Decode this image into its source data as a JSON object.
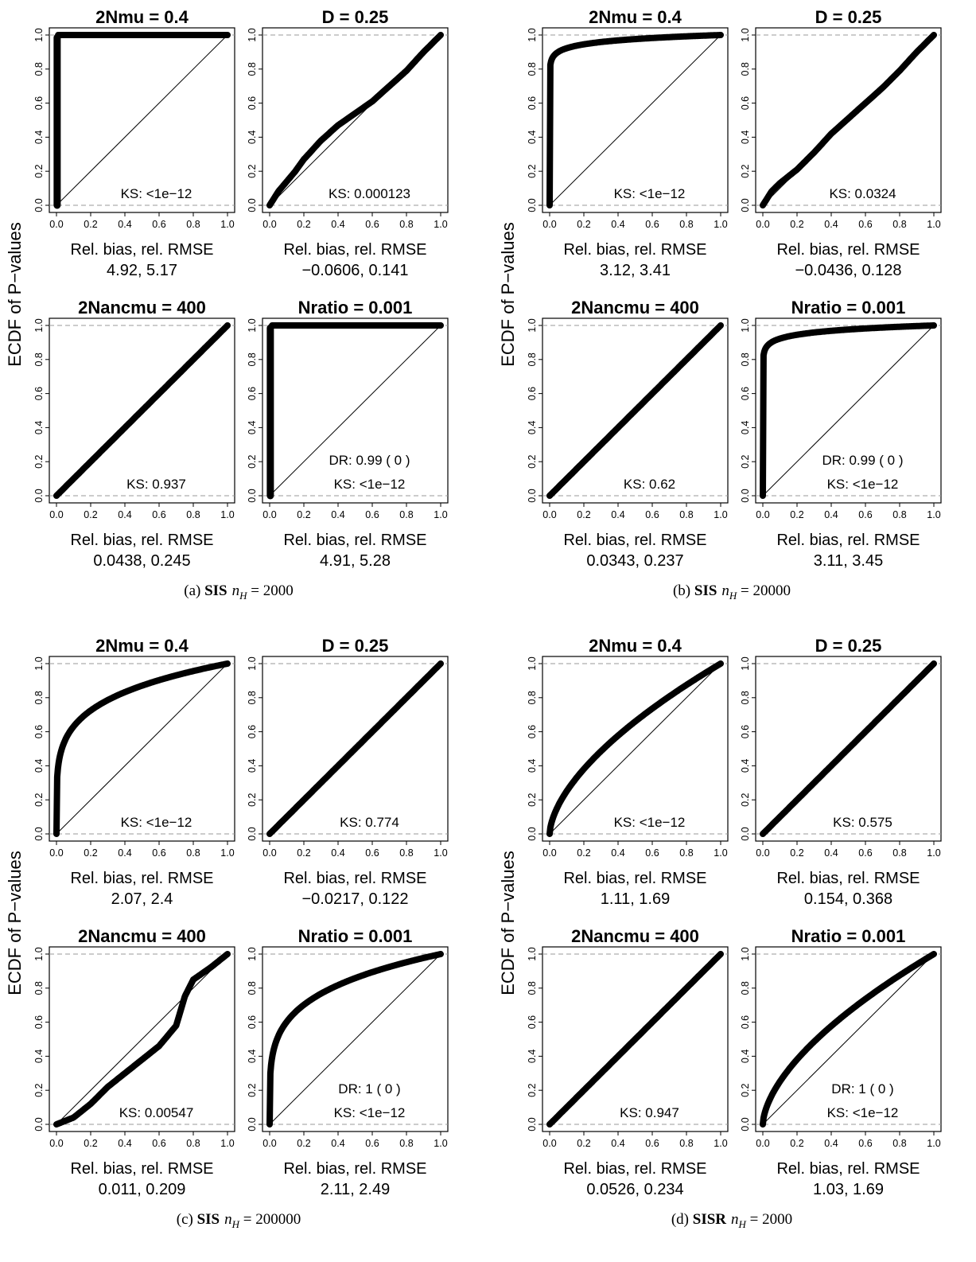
{
  "ylabel": "ECDF of P−values",
  "stat_label": "Rel. bias, rel. RMSE",
  "chart_data": [
    {
      "caption": {
        "prefix": "(a) ",
        "method": "SIS",
        "var": "n",
        "sub": "H",
        "eq": " = 2000"
      },
      "panels": [
        {
          "title": "2Nmu = 0.4",
          "ks": "KS: <1e−12",
          "dr": "",
          "stats": "4.92, 5.17",
          "shape": {
            "type": "vertical",
            "cap": 0.01
          }
        },
        {
          "title": "D = 0.25",
          "ks": "KS:  0.000123",
          "dr": "",
          "stats": "−0.0606, 0.141",
          "shape": {
            "type": "points",
            "x": [
              0,
              0.05,
              0.1,
              0.15,
              0.2,
              0.3,
              0.4,
              0.5,
              0.6,
              0.7,
              0.8,
              0.9,
              1.0
            ],
            "y": [
              0,
              0.08,
              0.14,
              0.2,
              0.27,
              0.38,
              0.47,
              0.54,
              0.61,
              0.7,
              0.79,
              0.9,
              1.0
            ]
          }
        },
        {
          "title": "2Nancmu = 400",
          "ks": "KS:  0.937",
          "dr": "",
          "stats": "0.0438, 0.245",
          "shape": {
            "type": "uniform"
          }
        },
        {
          "title": "Nratio = 0.001",
          "ks": "KS: <1e−12",
          "dr": "DR: 0.99  ( 0 )",
          "stats": "4.91, 5.28",
          "shape": {
            "type": "vertical",
            "cap": 0.015
          }
        }
      ]
    },
    {
      "caption": {
        "prefix": "(b) ",
        "method": "SIS",
        "var": "n",
        "sub": "H",
        "eq": " = 20000"
      },
      "panels": [
        {
          "title": "2Nmu = 0.4",
          "ks": "KS: <1e−12",
          "dr": "",
          "stats": "3.12, 3.41",
          "shape": {
            "type": "power",
            "k": 0.035
          }
        },
        {
          "title": "D = 0.25",
          "ks": "KS:  0.0324",
          "dr": "",
          "stats": "−0.0436, 0.128",
          "shape": {
            "type": "points",
            "x": [
              0,
              0.05,
              0.1,
              0.2,
              0.3,
              0.4,
              0.5,
              0.6,
              0.7,
              0.8,
              0.9,
              1.0
            ],
            "y": [
              0,
              0.08,
              0.13,
              0.21,
              0.31,
              0.42,
              0.51,
              0.6,
              0.69,
              0.79,
              0.9,
              1.0
            ]
          }
        },
        {
          "title": "2Nancmu = 400",
          "ks": "KS:  0.62",
          "dr": "",
          "stats": "0.0343, 0.237",
          "shape": {
            "type": "uniform"
          }
        },
        {
          "title": "Nratio = 0.001",
          "ks": "KS: <1e−12",
          "dr": "DR: 0.99  ( 0 )",
          "stats": "3.11, 3.45",
          "shape": {
            "type": "power",
            "k": 0.035
          }
        }
      ]
    },
    {
      "caption": {
        "prefix": "(c) ",
        "method": "SIS",
        "var": "n",
        "sub": "H",
        "eq": " = 200000"
      },
      "panels": [
        {
          "title": "2Nmu = 0.4",
          "ks": "KS: <1e−12",
          "dr": "",
          "stats": "2.07, 2.4",
          "shape": {
            "type": "power",
            "k": 0.2
          }
        },
        {
          "title": "D = 0.25",
          "ks": "KS:  0.774",
          "dr": "",
          "stats": "−0.0217, 0.122",
          "shape": {
            "type": "uniform"
          }
        },
        {
          "title": "2Nancmu = 400",
          "ks": "KS:  0.00547",
          "dr": "",
          "stats": "0.011, 0.209",
          "shape": {
            "type": "points",
            "x": [
              0,
              0.1,
              0.2,
              0.3,
              0.4,
              0.5,
              0.6,
              0.7,
              0.75,
              0.8,
              0.9,
              1.0
            ],
            "y": [
              0,
              0.04,
              0.12,
              0.22,
              0.3,
              0.38,
              0.46,
              0.58,
              0.75,
              0.85,
              0.92,
              1.0
            ]
          }
        },
        {
          "title": "Nratio = 0.001",
          "ks": "KS: <1e−12",
          "dr": "DR: 1  ( 0 )",
          "stats": "2.11, 2.49",
          "shape": {
            "type": "power",
            "k": 0.22
          }
        }
      ]
    },
    {
      "caption": {
        "prefix": "(d) ",
        "method": "SISR",
        "var": "n",
        "sub": "H",
        "eq": " = 2000"
      },
      "panels": [
        {
          "title": "2Nmu = 0.4",
          "ks": "KS: <1e−12",
          "dr": "",
          "stats": "1.11, 1.69",
          "shape": {
            "type": "power",
            "k": 0.6
          }
        },
        {
          "title": "D = 0.25",
          "ks": "KS:  0.575",
          "dr": "",
          "stats": "0.154, 0.368",
          "shape": {
            "type": "uniform"
          }
        },
        {
          "title": "2Nancmu = 400",
          "ks": "KS:  0.947",
          "dr": "",
          "stats": "0.0526, 0.234",
          "shape": {
            "type": "uniform"
          }
        },
        {
          "title": "Nratio = 0.001",
          "ks": "KS: <1e−12",
          "dr": "DR: 1  ( 0 )",
          "stats": "1.03, 1.69",
          "shape": {
            "type": "power",
            "k": 0.6
          }
        }
      ]
    }
  ],
  "axis": {
    "xlim": [
      0,
      1
    ],
    "ylim": [
      0,
      1
    ],
    "xticks": [
      "0.0",
      "0.2",
      "0.4",
      "0.6",
      "0.8",
      "1.0"
    ],
    "yticks": [
      "0.0",
      "0.2",
      "0.4",
      "0.6",
      "0.8",
      "1.0"
    ],
    "reference_line": "diagonal",
    "reference_levels": [
      0,
      1
    ],
    "series_type": "ecdf"
  }
}
